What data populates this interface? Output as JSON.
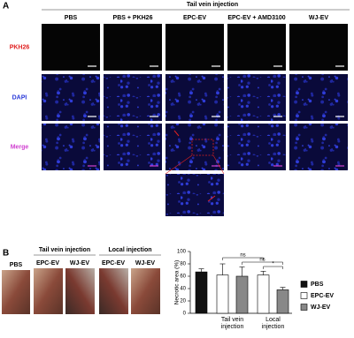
{
  "panel_a": {
    "label": "A",
    "header": "Tail vein injection",
    "columns": [
      "PBS",
      "PBS + PKH26",
      "EPC-EV",
      "EPC-EV + AMD3100",
      "WJ-EV"
    ],
    "rows": [
      "PKH26",
      "DAPI",
      "Merge"
    ]
  },
  "panel_b": {
    "label": "B",
    "photo_first": "PBS",
    "groups": [
      {
        "name": "Tail vein injection",
        "items": [
          "EPC-EV",
          "WJ-EV"
        ]
      },
      {
        "name": "Local injection",
        "items": [
          "EPC-EV",
          "WJ-EV"
        ]
      }
    ]
  },
  "chart_data": {
    "type": "bar",
    "ylabel": "Necrotic area (%)",
    "categories": [
      null,
      "Tail vein injection",
      "Local injection"
    ],
    "series": [
      {
        "name": "PBS",
        "color": "#111111",
        "values": [
          67,
          null,
          null
        ],
        "errors": [
          5,
          null,
          null
        ]
      },
      {
        "name": "EPC-EV",
        "color": "#ffffff",
        "values": [
          null,
          62,
          62
        ],
        "errors": [
          null,
          18,
          6
        ]
      },
      {
        "name": "WJ-EV",
        "color": "#888888",
        "values": [
          null,
          60,
          38
        ],
        "errors": [
          null,
          15,
          4
        ]
      }
    ],
    "ylim": [
      0,
      100
    ],
    "yticks": [
      0,
      20,
      40,
      60,
      80,
      100
    ],
    "significance": [
      "ns",
      "ns",
      "*"
    ]
  }
}
